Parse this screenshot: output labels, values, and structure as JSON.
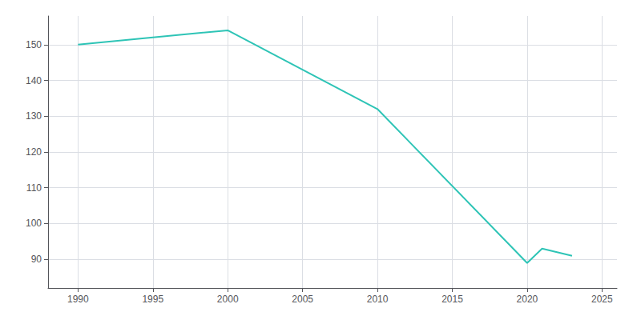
{
  "chart_data": {
    "type": "line",
    "x": [
      1990,
      1995,
      2000,
      2010,
      2020,
      2021,
      2022,
      2023
    ],
    "values": [
      150,
      152,
      154,
      132,
      89,
      93,
      92,
      91
    ],
    "color": "#2EC4B6",
    "xlim": [
      1988,
      2026
    ],
    "ylim": [
      82,
      158
    ],
    "xticks": [
      1990,
      1995,
      2000,
      2005,
      2010,
      2015,
      2020,
      2025
    ],
    "yticks": [
      90,
      100,
      110,
      120,
      130,
      140,
      150
    ],
    "grid": true
  }
}
